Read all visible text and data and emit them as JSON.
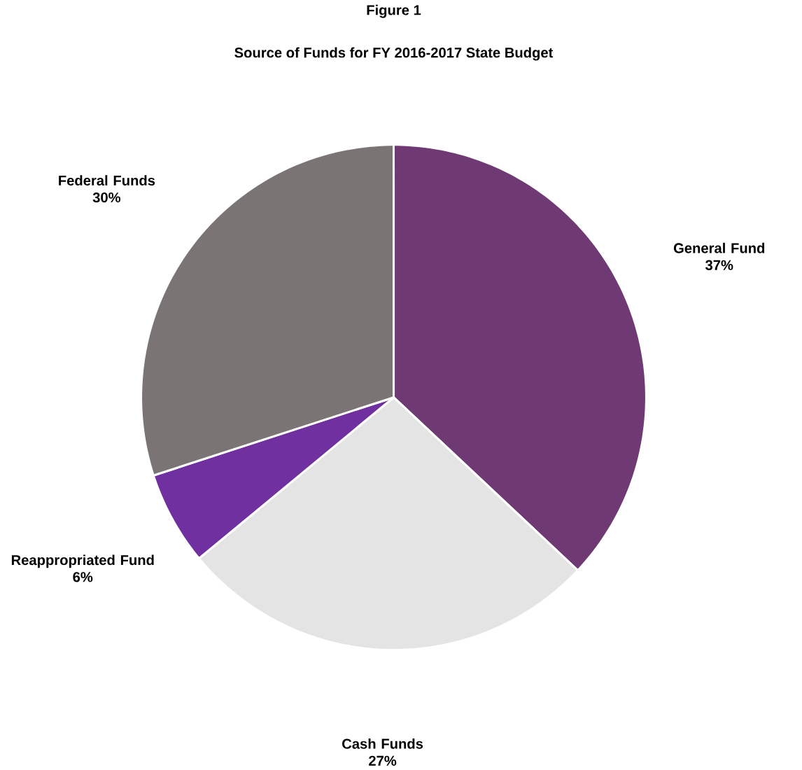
{
  "chart_data": {
    "type": "pie",
    "title": "Figure 1",
    "subtitle": "Source of Funds for FY 2016-2017 State Budget",
    "categories": [
      "General Fund",
      "Cash Funds",
      "Reappropriated Fund",
      "Federal Funds"
    ],
    "values": [
      37,
      27,
      6,
      30
    ],
    "value_labels": [
      "37%",
      "27%",
      "6%",
      "30%"
    ],
    "colors": [
      "#6f3a73",
      "#e4e4e4",
      "#7030a0",
      "#7a7574"
    ]
  }
}
